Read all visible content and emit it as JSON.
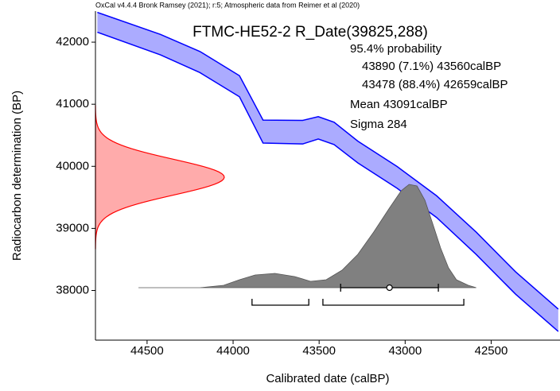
{
  "chart_data": {
    "type": "calibration",
    "note": "OxCal v4.4.4 Bronk Ramsey (2021); r:5; Atmospheric data from Reimer et al (2020)",
    "title": "FTMC-HE52-2 R_Date(39825,288)",
    "summary_lines": [
      "95.4% probability",
      "43890 (7.1%) 43560calBP",
      "43478 (88.4%) 42659calBP",
      "Mean 43091calBP",
      "Sigma 284"
    ],
    "x_label": "Calibrated date (calBP)",
    "y_label": "Radiocarbon determination (BP)",
    "xlim": [
      44800,
      42100
    ],
    "ylim": [
      37200,
      42500
    ],
    "xticks": [
      44500,
      44000,
      43500,
      43000,
      42500
    ],
    "yticks": [
      38000,
      39000,
      40000,
      41000,
      42000
    ],
    "curve": {
      "color": "#0000ff",
      "x": [
        44789,
        44422,
        44193,
        43963,
        43826,
        43596,
        43505,
        43413,
        43275,
        43046,
        42817,
        42587,
        42358,
        42110
      ],
      "values": [
        42320,
        41960,
        41680,
        41290,
        40560,
        40550,
        40620,
        40530,
        40230,
        39820,
        39350,
        38760,
        38120,
        37520
      ],
      "sigma": [
        160,
        165,
        170,
        170,
        185,
        190,
        180,
        180,
        175,
        175,
        175,
        180,
        180,
        180
      ]
    },
    "date": {
      "mean": 39825,
      "sigma": 288,
      "color": "#ff0000"
    },
    "posterior": {
      "color": "#808080",
      "x": [
        44550,
        44193,
        44055,
        43963,
        43872,
        43757,
        43642,
        43550,
        43459,
        43367,
        43275,
        43183,
        43092,
        43023,
        42977,
        42931,
        42885,
        42839,
        42794,
        42748,
        42702,
        42633,
        42587
      ],
      "values": [
        0,
        0,
        3,
        10,
        16,
        18,
        14,
        8,
        10,
        22,
        42,
        70,
        100,
        122,
        130,
        128,
        110,
        80,
        50,
        25,
        10,
        3,
        0
      ]
    },
    "ranges": [
      {
        "from": 43890,
        "to": 43560
      },
      {
        "from": 43478,
        "to": 42659
      }
    ],
    "mean": 43091,
    "sigma": 284
  }
}
